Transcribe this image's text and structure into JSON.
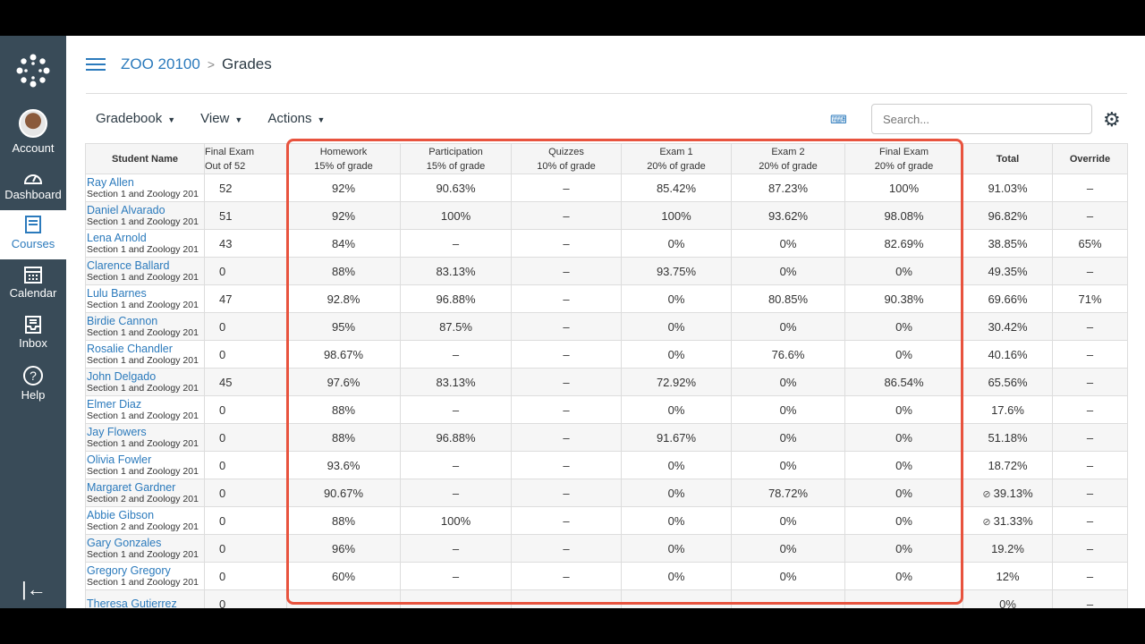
{
  "nav": {
    "items": [
      {
        "label": "Account"
      },
      {
        "label": "Dashboard"
      },
      {
        "label": "Courses",
        "active": true
      },
      {
        "label": "Calendar"
      },
      {
        "label": "Inbox"
      },
      {
        "label": "Help"
      }
    ]
  },
  "breadcrumb": {
    "course": "ZOO 20100",
    "separator": ">",
    "page": "Grades"
  },
  "toolbar": {
    "gradebook": "Gradebook",
    "view": "View",
    "actions": "Actions"
  },
  "search": {
    "placeholder": "Search..."
  },
  "colors": {
    "accent": "#2b7abc",
    "highlight_box": "#e8533e",
    "nav_bg": "#394b58"
  },
  "columns": [
    {
      "title": "Student Name",
      "sub": ""
    },
    {
      "title": "Final Exam",
      "sub": "Out of 52"
    },
    {
      "title": "Homework",
      "sub": "15% of grade"
    },
    {
      "title": "Participation",
      "sub": "15% of grade"
    },
    {
      "title": "Quizzes",
      "sub": "10% of grade"
    },
    {
      "title": "Exam 1",
      "sub": "20% of grade"
    },
    {
      "title": "Exam 2",
      "sub": "20% of grade"
    },
    {
      "title": "Final Exam",
      "sub": "20% of grade"
    },
    {
      "title": "Total",
      "sub": ""
    },
    {
      "title": "Override",
      "sub": ""
    }
  ],
  "rows": [
    {
      "name": "Ray Allen",
      "section": "Section 1 and Zoology 201",
      "cells": [
        "52",
        "92%",
        "90.63%",
        "–",
        "85.42%",
        "87.23%",
        "100%",
        "91.03%",
        "–"
      ]
    },
    {
      "name": "Daniel Alvarado",
      "section": "Section 1 and Zoology 201",
      "cells": [
        "51",
        "92%",
        "100%",
        "–",
        "100%",
        "93.62%",
        "98.08%",
        "96.82%",
        "–"
      ]
    },
    {
      "name": "Lena Arnold",
      "section": "Section 1 and Zoology 201",
      "cells": [
        "43",
        "84%",
        "–",
        "–",
        "0%",
        "0%",
        "82.69%",
        "38.85%",
        "65%"
      ]
    },
    {
      "name": "Clarence Ballard",
      "section": "Section 1 and Zoology 201",
      "cells": [
        "0",
        "88%",
        "83.13%",
        "–",
        "93.75%",
        "0%",
        "0%",
        "49.35%",
        "–"
      ]
    },
    {
      "name": "Lulu Barnes",
      "section": "Section 1 and Zoology 201",
      "cells": [
        "47",
        "92.8%",
        "96.88%",
        "–",
        "0%",
        "80.85%",
        "90.38%",
        "69.66%",
        "71%"
      ]
    },
    {
      "name": "Birdie Cannon",
      "section": "Section 1 and Zoology 201",
      "cells": [
        "0",
        "95%",
        "87.5%",
        "–",
        "0%",
        "0%",
        "0%",
        "30.42%",
        "–"
      ]
    },
    {
      "name": "Rosalie Chandler",
      "section": "Section 1 and Zoology 201",
      "cells": [
        "0",
        "98.67%",
        "–",
        "–",
        "0%",
        "76.6%",
        "0%",
        "40.16%",
        "–"
      ]
    },
    {
      "name": "John Delgado",
      "section": "Section 1 and Zoology 201",
      "cells": [
        "45",
        "97.6%",
        "83.13%",
        "–",
        "72.92%",
        "0%",
        "86.54%",
        "65.56%",
        "–"
      ]
    },
    {
      "name": "Elmer Diaz",
      "section": "Section 1 and Zoology 201",
      "cells": [
        "0",
        "88%",
        "–",
        "–",
        "0%",
        "0%",
        "0%",
        "17.6%",
        "–"
      ]
    },
    {
      "name": "Jay Flowers",
      "section": "Section 1 and Zoology 201",
      "cells": [
        "0",
        "88%",
        "96.88%",
        "–",
        "91.67%",
        "0%",
        "0%",
        "51.18%",
        "–"
      ]
    },
    {
      "name": "Olivia Fowler",
      "section": "Section 1 and Zoology 201",
      "cells": [
        "0",
        "93.6%",
        "–",
        "–",
        "0%",
        "0%",
        "0%",
        "18.72%",
        "–"
      ]
    },
    {
      "name": "Margaret Gardner",
      "section": "Section 2 and Zoology 201",
      "cells": [
        "0",
        "90.67%",
        "–",
        "–",
        "0%",
        "78.72%",
        "0%",
        "39.13%",
        "–"
      ],
      "hidden_total": true
    },
    {
      "name": "Abbie Gibson",
      "section": "Section 2 and Zoology 201",
      "cells": [
        "0",
        "88%",
        "100%",
        "–",
        "0%",
        "0%",
        "0%",
        "31.33%",
        "–"
      ],
      "hidden_total": true
    },
    {
      "name": "Gary Gonzales",
      "section": "Section 1 and Zoology 201",
      "cells": [
        "0",
        "96%",
        "–",
        "–",
        "0%",
        "0%",
        "0%",
        "19.2%",
        "–"
      ]
    },
    {
      "name": "Gregory Gregory",
      "section": "Section 1 and Zoology 201",
      "cells": [
        "0",
        "60%",
        "–",
        "–",
        "0%",
        "0%",
        "0%",
        "12%",
        "–"
      ]
    },
    {
      "name": "Theresa Gutierrez",
      "section": "",
      "cells": [
        "0",
        "",
        "",
        "",
        "",
        "",
        "",
        "0%",
        "–"
      ]
    }
  ]
}
